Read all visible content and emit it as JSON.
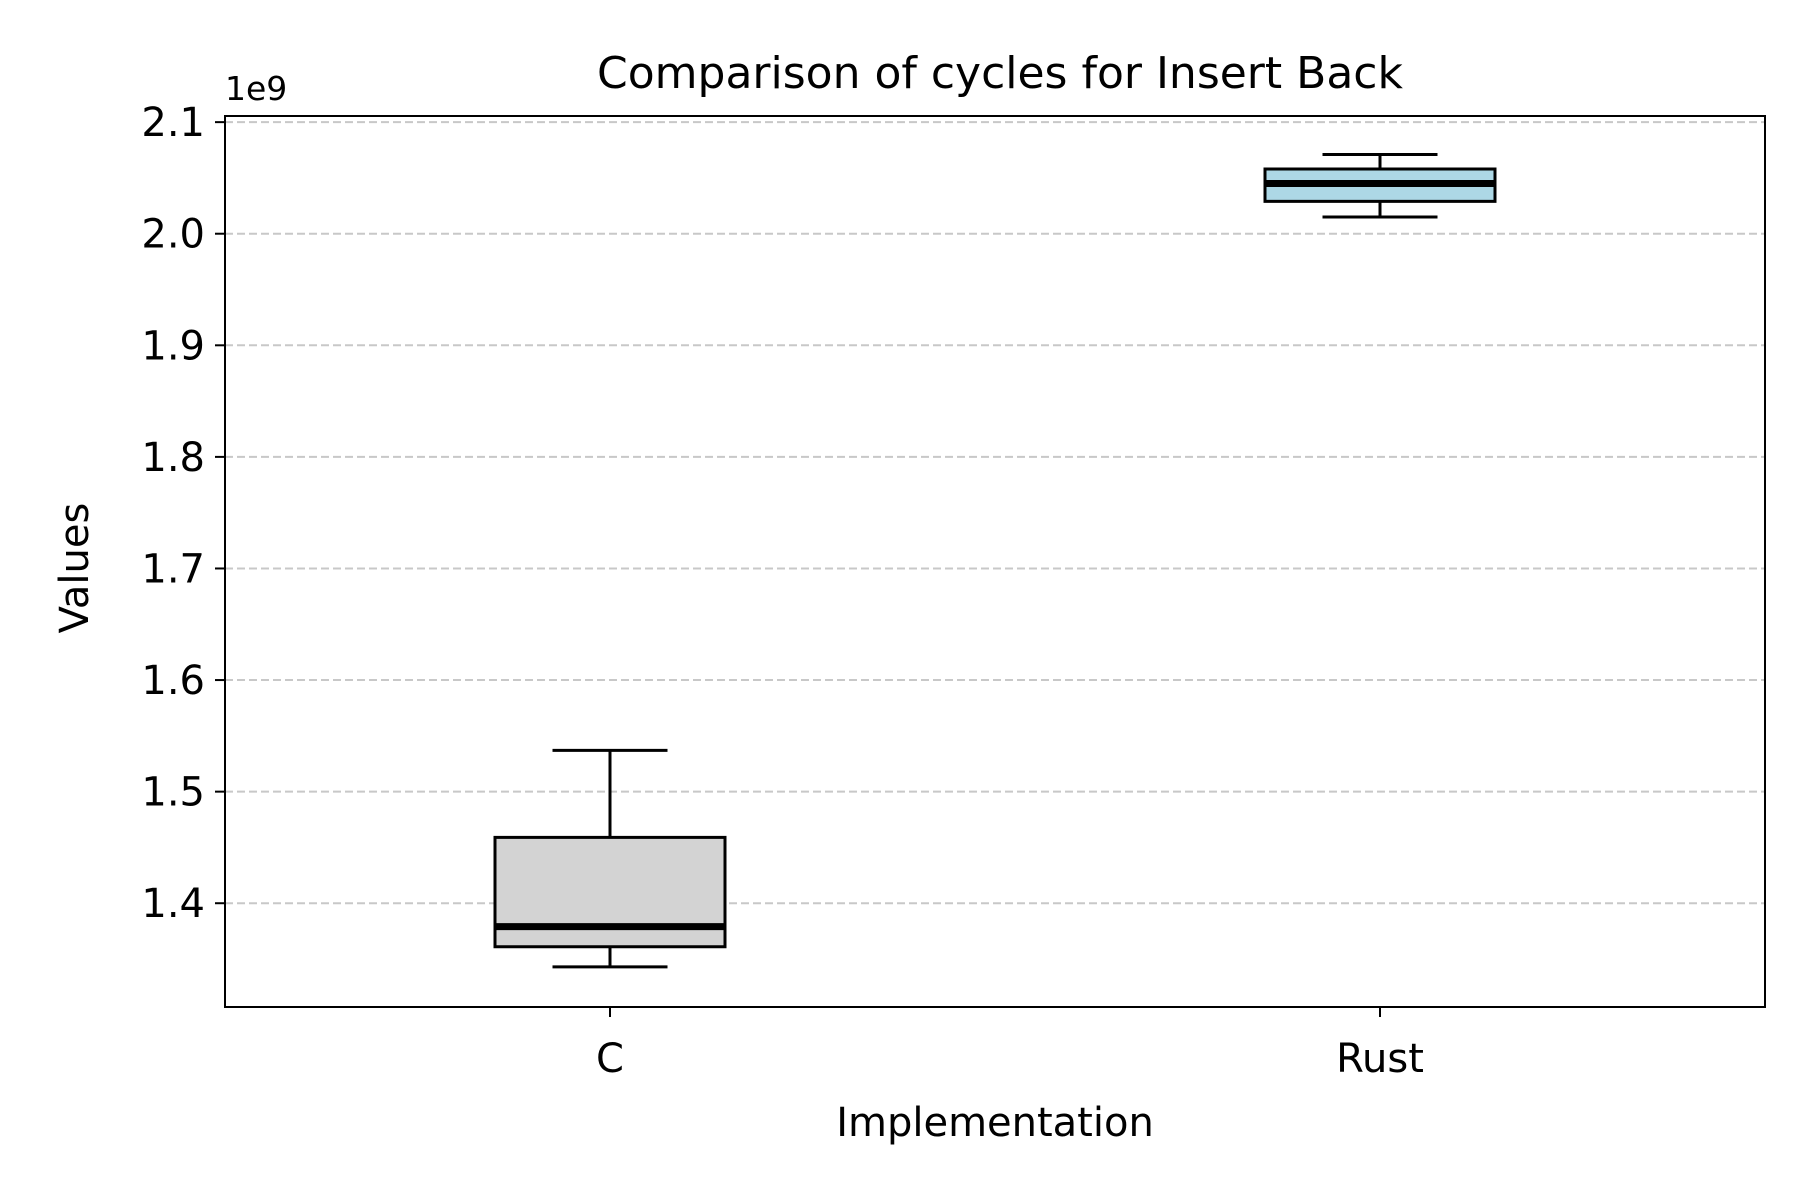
{
  "chart_data": {
    "type": "box",
    "title": "Comparison of cycles for Insert Back",
    "xlabel": "Implementation",
    "ylabel": "Values",
    "y_offset_label": "1e9",
    "y_multiplier": 1000000000,
    "ylim": [
      1.307,
      2.1055
    ],
    "yticks": [
      1.4,
      1.5,
      1.6,
      1.7,
      1.8,
      1.9,
      2.0,
      2.1
    ],
    "ytick_labels": [
      "1.4",
      "1.5",
      "1.6",
      "1.7",
      "1.8",
      "1.9",
      "2.0",
      "2.1"
    ],
    "grid": "y-dashed",
    "categories": [
      "C",
      "Rust"
    ],
    "boxes": [
      {
        "category": "C",
        "whisker_low": 1.343,
        "q1": 1.361,
        "median": 1.379,
        "q3": 1.459,
        "whisker_high": 1.537,
        "color": "#d3d3d3"
      },
      {
        "category": "Rust",
        "whisker_low": 2.015,
        "q1": 2.029,
        "median": 2.045,
        "q3": 2.058,
        "whisker_high": 2.071,
        "color": "#add8e6"
      }
    ]
  }
}
